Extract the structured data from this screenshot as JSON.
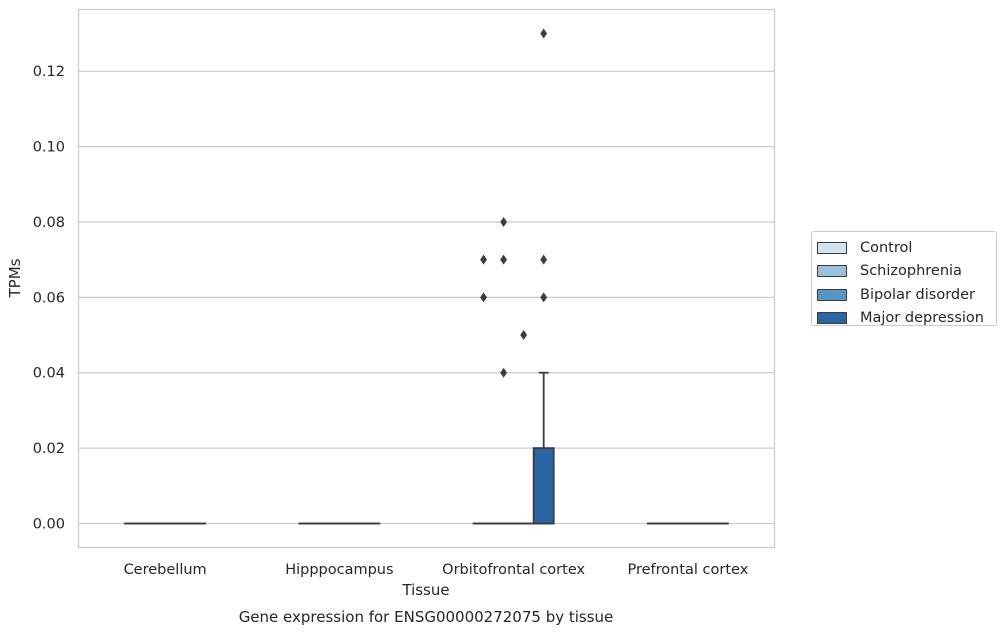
{
  "chart_data": {
    "type": "box",
    "title": "Gene expression for ENSG00000272075 by tissue",
    "xlabel": "Tissue",
    "ylabel": "TPMs",
    "categories": [
      "Cerebellum",
      "Hipppocampus",
      "Orbitofrontal cortex",
      "Prefrontal cortex"
    ],
    "ylim": [
      -0.0065,
      0.1365
    ],
    "yticks": [
      "0.00",
      "0.02",
      "0.04",
      "0.06",
      "0.08",
      "0.10",
      "0.12"
    ],
    "grid": true,
    "legend_position": "right",
    "series": [
      {
        "name": "Control",
        "color": "#d3e3f0",
        "boxes": [
          {
            "q1": 0,
            "median": 0,
            "q3": 0,
            "whisker_low": 0,
            "whisker_high": 0,
            "outliers": []
          },
          {
            "q1": 0,
            "median": 0,
            "q3": 0,
            "whisker_low": 0,
            "whisker_high": 0,
            "outliers": []
          },
          {
            "q1": 0,
            "median": 0,
            "q3": 0,
            "whisker_low": 0,
            "whisker_high": 0,
            "outliers": [
              0.06,
              0.07
            ]
          },
          {
            "q1": 0,
            "median": 0,
            "q3": 0,
            "whisker_low": 0,
            "whisker_high": 0,
            "outliers": []
          }
        ]
      },
      {
        "name": "Schizophrenia",
        "color": "#99c0dd",
        "boxes": [
          {
            "q1": 0,
            "median": 0,
            "q3": 0,
            "whisker_low": 0,
            "whisker_high": 0,
            "outliers": []
          },
          {
            "q1": 0,
            "median": 0,
            "q3": 0,
            "whisker_low": 0,
            "whisker_high": 0,
            "outliers": []
          },
          {
            "q1": 0,
            "median": 0,
            "q3": 0,
            "whisker_low": 0,
            "whisker_high": 0,
            "outliers": [
              0.04,
              0.07,
              0.08
            ]
          },
          {
            "q1": 0,
            "median": 0,
            "q3": 0,
            "whisker_low": 0,
            "whisker_high": 0,
            "outliers": []
          }
        ]
      },
      {
        "name": "Bipolar disorder",
        "color": "#5497c7",
        "boxes": [
          {
            "q1": 0,
            "median": 0,
            "q3": 0,
            "whisker_low": 0,
            "whisker_high": 0,
            "outliers": []
          },
          {
            "q1": 0,
            "median": 0,
            "q3": 0,
            "whisker_low": 0,
            "whisker_high": 0,
            "outliers": []
          },
          {
            "q1": 0,
            "median": 0,
            "q3": 0,
            "whisker_low": 0,
            "whisker_high": 0,
            "outliers": [
              0.05
            ]
          },
          {
            "q1": 0,
            "median": 0,
            "q3": 0,
            "whisker_low": 0,
            "whisker_high": 0,
            "outliers": []
          }
        ]
      },
      {
        "name": "Major depression",
        "color": "#2a66a6",
        "boxes": [
          {
            "q1": 0,
            "median": 0,
            "q3": 0,
            "whisker_low": 0,
            "whisker_high": 0,
            "outliers": []
          },
          {
            "q1": 0,
            "median": 0,
            "q3": 0,
            "whisker_low": 0,
            "whisker_high": 0,
            "outliers": []
          },
          {
            "q1": 0,
            "median": 0,
            "q3": 0.02,
            "whisker_low": 0,
            "whisker_high": 0.04,
            "outliers": [
              0.06,
              0.07,
              0.13
            ]
          },
          {
            "q1": 0,
            "median": 0,
            "q3": 0,
            "whisker_low": 0,
            "whisker_high": 0,
            "outliers": []
          }
        ]
      }
    ]
  }
}
